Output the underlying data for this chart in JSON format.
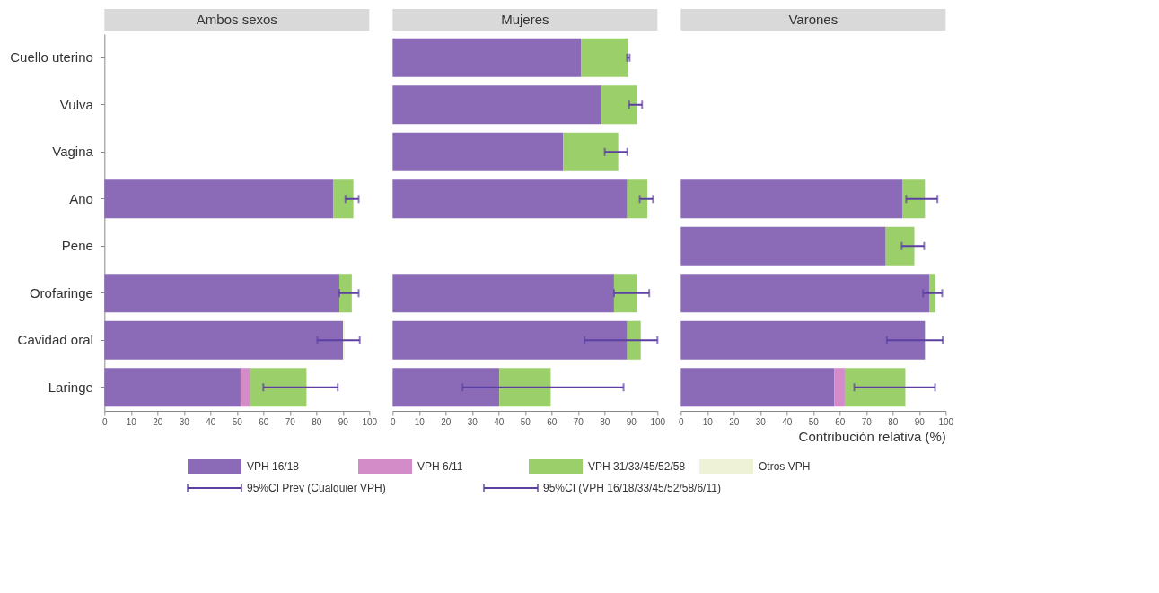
{
  "chart_data": [
    {
      "type": "bar",
      "orientation": "horizontal",
      "stacked": true,
      "title": "Ambos sexos",
      "categories": [
        "Cuello uterino",
        "Vulva",
        "Vagina",
        "Ano",
        "Pene",
        "Orofaringe",
        "Cavidad oral",
        "Laringe"
      ],
      "xlim": [
        0,
        100
      ],
      "xticks": [
        0,
        10,
        20,
        30,
        40,
        50,
        60,
        70,
        80,
        90,
        100
      ],
      "legend": "bottom",
      "annotations": [
        "95%CI Prev (Cualquier VPH)",
        "95%CI (VPH 16/18/33/45/52/58/6/11)"
      ],
      "series": [
        {
          "name": "VPH 16/18",
          "color": "#8b6bb8",
          "values": [
            null,
            null,
            null,
            86.5,
            null,
            88.7,
            90.1,
            51.4
          ],
          "errors": [
            null,
            null,
            null,
            [
              91,
              96
            ],
            null,
            [
              88.7,
              96
            ],
            [
              80.4,
              96.4
            ],
            [
              60,
              88.1
            ]
          ]
        },
        {
          "name": "VPH 6/11",
          "color": "#d48cc8",
          "values": [
            null,
            null,
            null,
            null,
            null,
            null,
            null,
            3.6
          ]
        },
        {
          "name": "VPH 31/33/45/52/58",
          "color": "#9bcf6a",
          "values": [
            null,
            null,
            null,
            7.5,
            null,
            4.7,
            null,
            21.3
          ]
        },
        {
          "name": "Otros VPH",
          "color": "#eef3d8",
          "values": [
            null,
            null,
            null,
            null,
            null,
            null,
            0.6,
            null
          ]
        }
      ]
    },
    {
      "type": "bar",
      "orientation": "horizontal",
      "stacked": true,
      "title": "Mujeres",
      "xlim": [
        0,
        100
      ],
      "xticks": [
        0,
        10,
        20,
        30,
        40,
        50,
        60,
        70,
        80,
        90,
        100
      ],
      "tick_labels": "x",
      "series": [
        {
          "color": "#8b6bb8",
          "values": [
            71.1,
            78.9,
            64.4,
            88.6,
            null,
            83.6,
            88.6,
            40.3
          ],
          "errors": [
            [
              88.5,
              89.5
            ],
            [
              89.3,
              94.2
            ],
            [
              80.1,
              88.6
            ],
            [
              93.3,
              98.3
            ],
            null,
            [
              83.6,
              96.9
            ],
            [
              72.5,
              100
            ],
            [
              26.4,
              87.2
            ]
          ]
        },
        {
          "color": "#d48cc8",
          "values": [
            null,
            null,
            null,
            null,
            null,
            null,
            null,
            null
          ]
        },
        {
          "color": "#9bcf6a",
          "values": [
            17.9,
            13.4,
            20.8,
            7.6,
            null,
            8.7,
            5.1,
            19.4
          ]
        },
        {
          "color": "#eef3d8",
          "values": [
            null,
            null,
            null,
            null,
            null,
            null,
            null,
            null
          ]
        }
      ]
    },
    {
      "type": "bar",
      "orientation": "horizontal",
      "stacked": true,
      "title": "Varones",
      "xlabel": "Contribución relativa (%)",
      "xlim": [
        0,
        100
      ],
      "xticks": [
        0,
        10,
        20,
        30,
        40,
        50,
        60,
        70,
        80,
        90,
        100
      ],
      "tick_labels": "x",
      "series": [
        {
          "color": "#8b6bb8",
          "values": [
            null,
            null,
            null,
            83.8,
            77.4,
            93.8,
            92.2,
            57.9
          ],
          "errors": [
            null,
            null,
            null,
            [
              85.1,
              96.9
            ],
            [
              83.4,
              91.9
            ],
            [
              91.5,
              98.7
            ],
            [
              77.8,
              98.9
            ],
            [
              65.5,
              96
            ]
          ]
        },
        {
          "color": "#d48cc8",
          "values": [
            null,
            null,
            null,
            null,
            null,
            null,
            null,
            4.0
          ]
        },
        {
          "color": "#9bcf6a",
          "values": [
            null,
            null,
            null,
            8.4,
            10.8,
            2.4,
            null,
            22.9
          ]
        },
        {
          "color": "#eef3d8",
          "values": [
            null,
            null,
            null,
            null,
            null,
            null,
            null,
            null
          ]
        }
      ]
    }
  ]
}
